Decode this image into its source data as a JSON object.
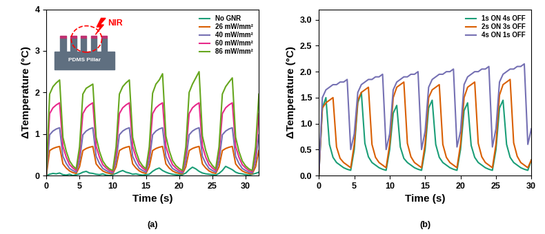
{
  "chart_data": [
    {
      "type": "line",
      "caption": "(a)",
      "x_label": "Time (s)",
      "y_label": "ΔTemperature (°C)",
      "annotations": [
        "NIR",
        "PDMS Pillar"
      ],
      "xlim": [
        0,
        32
      ],
      "xticks": [
        0,
        5,
        10,
        15,
        20,
        25,
        30
      ],
      "ylim": [
        0,
        4
      ],
      "yticks": [
        0,
        1,
        2,
        3,
        4
      ],
      "grid": false,
      "legend": "upper right",
      "x": [
        0,
        0.5,
        1,
        1.5,
        2,
        2.5,
        3,
        3.5,
        4,
        4.5,
        5,
        5.5,
        6,
        6.5,
        7,
        7.5,
        8,
        8.5,
        9,
        9.5,
        10,
        10.5,
        11,
        11.5,
        12,
        12.5,
        13,
        13.5,
        14,
        14.5,
        15,
        15.5,
        16,
        16.5,
        17,
        17.5,
        18,
        18.5,
        19,
        19.5,
        20,
        20.5,
        21,
        21.5,
        22,
        22.5,
        23,
        23.5,
        24,
        24.5,
        25,
        25.5,
        26,
        26.5,
        27,
        27.5,
        28,
        28.5,
        29,
        29.5,
        30,
        30.5,
        31,
        31.5,
        32
      ],
      "series": [
        {
          "name": "No GNR",
          "color": "#1b9e77",
          "values": [
            0,
            0.03,
            0.05,
            0.04,
            0.06,
            0.02,
            0.01,
            0.03,
            0.0,
            0.02,
            0.04,
            0.08,
            0.1,
            0.06,
            0.05,
            0.03,
            0.02,
            0.04,
            0.01,
            0.0,
            0.02,
            0.05,
            0.09,
            0.12,
            0.08,
            0.06,
            0.03,
            0.04,
            0.02,
            0.01,
            0.02,
            0.03,
            0.1,
            0.15,
            0.18,
            0.12,
            0.08,
            0.05,
            0.03,
            0.02,
            0.01,
            0.02,
            0.06,
            0.14,
            0.2,
            0.16,
            0.1,
            0.06,
            0.04,
            0.03,
            0.02,
            0.01,
            0.05,
            0.12,
            0.22,
            0.18,
            0.14,
            0.08,
            0.05,
            0.04,
            0.02,
            0.01,
            0.03,
            0.05,
            0.08
          ]
        },
        {
          "name": "26 mW/mm²",
          "color": "#d95f02",
          "values": [
            0.0,
            0.6,
            0.65,
            0.68,
            0.7,
            0.28,
            0.18,
            0.11,
            0.07,
            0.05,
            0.21,
            0.6,
            0.65,
            0.68,
            0.7,
            0.28,
            0.18,
            0.11,
            0.07,
            0.05,
            0.04,
            0.21,
            0.6,
            0.65,
            0.68,
            0.7,
            0.28,
            0.18,
            0.11,
            0.07,
            0.05,
            0.21,
            0.6,
            0.65,
            0.68,
            0.7,
            0.28,
            0.18,
            0.11,
            0.07,
            0.05,
            0.04,
            0.21,
            0.6,
            0.65,
            0.68,
            0.7,
            0.28,
            0.18,
            0.11,
            0.07,
            0.05,
            0.21,
            0.6,
            0.65,
            0.68,
            0.7,
            0.28,
            0.18,
            0.11,
            0.07,
            0.05,
            0.04,
            0.21,
            0.6
          ]
        },
        {
          "name": "40 mW/mm²",
          "color": "#7570b3",
          "values": [
            0.0,
            0.98,
            1.07,
            1.12,
            1.15,
            0.46,
            0.29,
            0.17,
            0.12,
            0.08,
            0.35,
            0.98,
            1.07,
            1.12,
            1.15,
            0.46,
            0.29,
            0.17,
            0.12,
            0.08,
            0.06,
            0.35,
            0.98,
            1.07,
            1.12,
            1.15,
            0.46,
            0.29,
            0.17,
            0.12,
            0.08,
            0.35,
            0.98,
            1.07,
            1.12,
            1.15,
            0.46,
            0.29,
            0.17,
            0.12,
            0.08,
            0.06,
            0.35,
            0.98,
            1.07,
            1.12,
            1.15,
            0.46,
            0.29,
            0.17,
            0.12,
            0.08,
            0.35,
            0.98,
            1.07,
            1.12,
            1.15,
            0.46,
            0.29,
            0.17,
            0.12,
            0.08,
            0.06,
            0.35,
            0.98
          ]
        },
        {
          "name": "60 mW/mm²",
          "color": "#e7298a",
          "values": [
            0.0,
            1.49,
            1.63,
            1.7,
            1.75,
            0.7,
            0.44,
            0.26,
            0.18,
            0.12,
            0.53,
            1.49,
            1.63,
            1.7,
            1.75,
            0.7,
            0.44,
            0.26,
            0.18,
            0.12,
            0.09,
            0.53,
            1.49,
            1.63,
            1.7,
            1.75,
            0.7,
            0.44,
            0.26,
            0.18,
            0.12,
            0.53,
            1.49,
            1.63,
            1.7,
            1.75,
            0.7,
            0.44,
            0.26,
            0.18,
            0.12,
            0.09,
            0.53,
            1.49,
            1.63,
            1.7,
            1.75,
            0.7,
            0.44,
            0.26,
            0.18,
            0.12,
            0.53,
            1.49,
            1.63,
            1.7,
            1.75,
            0.7,
            0.44,
            0.26,
            0.18,
            0.12,
            0.09,
            0.53,
            1.49
          ]
        },
        {
          "name": "86 mW/mm²",
          "color": "#66a61e",
          "values": [
            0.0,
            1.96,
            2.14,
            2.23,
            2.3,
            0.92,
            0.58,
            0.35,
            0.23,
            0.16,
            0.69,
            1.96,
            2.1,
            2.15,
            2.2,
            0.92,
            0.58,
            0.35,
            0.23,
            0.16,
            0.12,
            0.69,
            1.96,
            2.14,
            2.23,
            2.3,
            0.92,
            0.58,
            0.35,
            0.23,
            0.16,
            0.69,
            1.98,
            2.2,
            2.3,
            2.45,
            0.95,
            0.6,
            0.36,
            0.24,
            0.17,
            0.12,
            0.69,
            2.0,
            2.2,
            2.35,
            2.5,
            0.95,
            0.6,
            0.36,
            0.24,
            0.16,
            0.69,
            1.96,
            2.14,
            2.25,
            2.35,
            0.92,
            0.58,
            0.35,
            0.23,
            0.16,
            0.12,
            0.69,
            1.96
          ]
        }
      ]
    },
    {
      "type": "line",
      "caption": "(b)",
      "x_label": "Time (s)",
      "y_label": "ΔTemperature (°C)",
      "xlim": [
        0,
        30
      ],
      "xticks": [
        0,
        5,
        10,
        15,
        20,
        25,
        30
      ],
      "ylim": [
        0,
        3.2
      ],
      "yticks": [
        {
          "value": 0,
          "label": "0.0"
        },
        0.5,
        {
          "value": 1,
          "label": "1.0"
        },
        1.5,
        {
          "value": 2,
          "label": "2.0"
        },
        2.5,
        {
          "value": 3,
          "label": "3.0"
        }
      ],
      "grid": false,
      "legend": "upper right",
      "x": [
        0,
        0.5,
        1,
        1.5,
        2,
        2.5,
        3,
        3.5,
        4,
        4.5,
        5,
        5.5,
        6,
        6.5,
        7,
        7.5,
        8,
        8.5,
        9,
        9.5,
        10,
        10.5,
        11,
        11.5,
        12,
        12.5,
        13,
        13.5,
        14,
        14.5,
        15,
        15.5,
        16,
        16.5,
        17,
        17.5,
        18,
        18.5,
        19,
        19.5,
        20,
        20.5,
        21,
        21.5,
        22,
        22.5,
        23,
        23.5,
        24,
        24.5,
        25,
        25.5,
        26,
        26.5,
        27,
        27.5,
        28,
        28.5,
        29,
        29.5,
        30
      ],
      "series": [
        {
          "name": "1s ON 4s OFF",
          "color": "#1b9e77",
          "values": [
            0.0,
            1.3,
            1.5,
            0.6,
            0.35,
            0.25,
            0.2,
            0.15,
            0.12,
            0.1,
            0.5,
            1.4,
            1.6,
            0.62,
            0.36,
            0.25,
            0.2,
            0.15,
            0.12,
            0.1,
            0.5,
            1.2,
            1.35,
            0.55,
            0.33,
            0.25,
            0.2,
            0.15,
            0.12,
            0.1,
            0.5,
            1.3,
            1.45,
            0.6,
            0.35,
            0.25,
            0.2,
            0.15,
            0.12,
            0.1,
            0.5,
            1.25,
            1.4,
            0.58,
            0.35,
            0.25,
            0.2,
            0.15,
            0.12,
            0.1,
            0.5,
            1.3,
            1.45,
            0.6,
            0.35,
            0.25,
            0.2,
            0.15,
            0.12,
            0.1,
            0.3
          ]
        },
        {
          "name": "2s ON 3s OFF",
          "color": "#d95f02",
          "values": [
            0.0,
            1.3,
            1.4,
            1.45,
            1.5,
            0.55,
            0.33,
            0.25,
            0.2,
            0.15,
            0.6,
            1.45,
            1.6,
            1.65,
            1.7,
            0.6,
            0.35,
            0.25,
            0.2,
            0.15,
            0.6,
            1.5,
            1.7,
            1.75,
            1.8,
            0.62,
            0.36,
            0.25,
            0.2,
            0.15,
            0.6,
            1.5,
            1.65,
            1.7,
            1.75,
            0.6,
            0.35,
            0.25,
            0.2,
            0.15,
            0.6,
            1.5,
            1.7,
            1.75,
            1.8,
            0.62,
            0.36,
            0.25,
            0.2,
            0.15,
            0.6,
            1.55,
            1.75,
            1.8,
            1.85,
            0.63,
            0.37,
            0.25,
            0.2,
            0.15,
            0.3
          ]
        },
        {
          "name": "4s ON 1s OFF",
          "color": "#7570b3",
          "values": [
            0.0,
            1.5,
            1.65,
            1.7,
            1.75,
            1.75,
            1.8,
            1.8,
            1.85,
            0.5,
            0.8,
            1.6,
            1.75,
            1.8,
            1.85,
            1.85,
            1.9,
            1.9,
            1.95,
            0.5,
            0.8,
            1.65,
            1.8,
            1.85,
            1.9,
            1.9,
            1.95,
            1.95,
            2.0,
            0.5,
            0.85,
            1.7,
            1.85,
            1.9,
            1.95,
            1.95,
            2.0,
            2.0,
            2.05,
            0.55,
            0.85,
            1.75,
            1.9,
            1.95,
            2.0,
            2.0,
            2.05,
            2.05,
            2.1,
            0.55,
            0.9,
            1.8,
            1.95,
            2.0,
            2.05,
            2.05,
            2.1,
            2.1,
            2.15,
            0.6,
            0.9
          ]
        }
      ]
    }
  ]
}
